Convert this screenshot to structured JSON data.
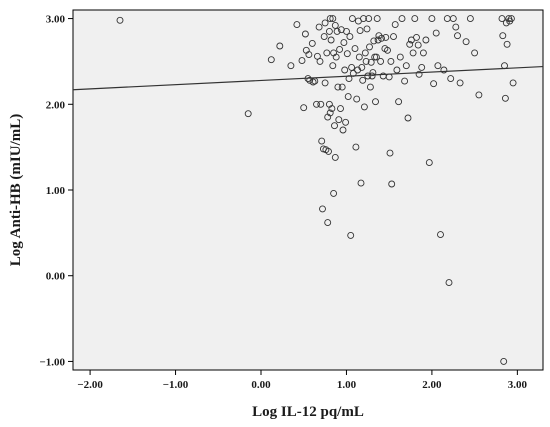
{
  "chart_data": {
    "type": "scatter",
    "title": "",
    "xlabel": "Log IL-12 pq/mL",
    "ylabel": "Log Anti-HB (mIU/mL)",
    "xlim": [
      -2.2,
      3.3
    ],
    "ylim": [
      -1.1,
      3.1
    ],
    "x_ticks": [
      -2.0,
      -1.0,
      0.0,
      1.0,
      2.0,
      3.0
    ],
    "x_tick_labels": [
      "−2.00",
      "−1.00",
      "0.00",
      "1.00",
      "2.00",
      "3.00"
    ],
    "y_ticks": [
      -1.0,
      0.0,
      1.0,
      2.0,
      3.0
    ],
    "y_tick_labels": [
      "−1.00",
      "0.00",
      "1.00",
      "2.00",
      "3.00"
    ],
    "grid": false,
    "legend": "none",
    "plot_background": "#f0f0f0",
    "marker_color": "#333333",
    "fit_line": {
      "x": [
        -2.2,
        3.3
      ],
      "y": [
        2.17,
        2.44
      ]
    },
    "points": [
      [
        -1.65,
        2.98
      ],
      [
        -0.15,
        1.89
      ],
      [
        0.12,
        2.52
      ],
      [
        0.22,
        2.68
      ],
      [
        0.35,
        2.45
      ],
      [
        0.42,
        2.93
      ],
      [
        0.48,
        2.51
      ],
      [
        0.5,
        1.96
      ],
      [
        0.52,
        2.82
      ],
      [
        0.53,
        2.63
      ],
      [
        0.55,
        2.3
      ],
      [
        0.56,
        2.58
      ],
      [
        0.57,
        2.28
      ],
      [
        0.6,
        2.71
      ],
      [
        0.61,
        2.26
      ],
      [
        0.63,
        2.27
      ],
      [
        0.65,
        2.0
      ],
      [
        0.66,
        2.56
      ],
      [
        0.68,
        2.9
      ],
      [
        0.69,
        2.5
      ],
      [
        0.7,
        2.0
      ],
      [
        0.71,
        1.57
      ],
      [
        0.72,
        0.78
      ],
      [
        0.73,
        1.48
      ],
      [
        0.74,
        2.79
      ],
      [
        0.75,
        2.95
      ],
      [
        0.75,
        2.25
      ],
      [
        0.76,
        1.47
      ],
      [
        0.77,
        2.6
      ],
      [
        0.78,
        1.85
      ],
      [
        0.78,
        0.62
      ],
      [
        0.79,
        1.45
      ],
      [
        0.8,
        2.85
      ],
      [
        0.8,
        2.0
      ],
      [
        0.81,
        3.0
      ],
      [
        0.81,
        1.9
      ],
      [
        0.82,
        2.75
      ],
      [
        0.83,
        1.95
      ],
      [
        0.84,
        3.0
      ],
      [
        0.84,
        2.45
      ],
      [
        0.85,
        2.6
      ],
      [
        0.85,
        0.96
      ],
      [
        0.86,
        1.75
      ],
      [
        0.87,
        2.92
      ],
      [
        0.87,
        1.38
      ],
      [
        0.88,
        2.55
      ],
      [
        0.89,
        2.85
      ],
      [
        0.9,
        2.2
      ],
      [
        0.91,
        1.82
      ],
      [
        0.92,
        2.64
      ],
      [
        0.93,
        1.95
      ],
      [
        0.94,
        2.87
      ],
      [
        0.95,
        2.2
      ],
      [
        0.96,
        1.7
      ],
      [
        0.97,
        2.72
      ],
      [
        0.98,
        2.4
      ],
      [
        0.99,
        1.79
      ],
      [
        1.0,
        2.85
      ],
      [
        1.01,
        2.59
      ],
      [
        1.02,
        2.09
      ],
      [
        1.03,
        2.3
      ],
      [
        1.04,
        2.79
      ],
      [
        1.05,
        0.47
      ],
      [
        1.06,
        2.43
      ],
      [
        1.07,
        3.0
      ],
      [
        1.08,
        2.36
      ],
      [
        1.1,
        2.65
      ],
      [
        1.11,
        1.5
      ],
      [
        1.12,
        2.06
      ],
      [
        1.13,
        2.4
      ],
      [
        1.14,
        2.97
      ],
      [
        1.15,
        2.55
      ],
      [
        1.16,
        2.86
      ],
      [
        1.17,
        1.08
      ],
      [
        1.18,
        2.43
      ],
      [
        1.19,
        2.28
      ],
      [
        1.2,
        3.0
      ],
      [
        1.21,
        1.97
      ],
      [
        1.22,
        2.6
      ],
      [
        1.23,
        2.5
      ],
      [
        1.24,
        2.88
      ],
      [
        1.25,
        2.33
      ],
      [
        1.26,
        3.0
      ],
      [
        1.27,
        2.67
      ],
      [
        1.28,
        2.2
      ],
      [
        1.29,
        2.49
      ],
      [
        1.3,
        2.33
      ],
      [
        1.31,
        2.37
      ],
      [
        1.32,
        2.74
      ],
      [
        1.33,
        2.55
      ],
      [
        1.34,
        2.03
      ],
      [
        1.35,
        2.55
      ],
      [
        1.36,
        3.0
      ],
      [
        1.37,
        2.75
      ],
      [
        1.38,
        2.8
      ],
      [
        1.4,
        2.5
      ],
      [
        1.41,
        2.77
      ],
      [
        1.43,
        2.33
      ],
      [
        1.45,
        2.65
      ],
      [
        1.46,
        2.78
      ],
      [
        1.48,
        2.63
      ],
      [
        1.5,
        2.32
      ],
      [
        1.51,
        1.43
      ],
      [
        1.52,
        2.5
      ],
      [
        1.53,
        1.07
      ],
      [
        1.55,
        2.79
      ],
      [
        1.57,
        2.93
      ],
      [
        1.59,
        2.4
      ],
      [
        1.61,
        2.03
      ],
      [
        1.63,
        2.55
      ],
      [
        1.65,
        3.0
      ],
      [
        1.68,
        2.27
      ],
      [
        1.7,
        2.45
      ],
      [
        1.72,
        1.84
      ],
      [
        1.74,
        2.7
      ],
      [
        1.76,
        2.75
      ],
      [
        1.78,
        2.6
      ],
      [
        1.8,
        3.0
      ],
      [
        1.82,
        2.78
      ],
      [
        1.84,
        2.69
      ],
      [
        1.85,
        2.35
      ],
      [
        1.88,
        2.43
      ],
      [
        1.9,
        2.6
      ],
      [
        1.93,
        2.75
      ],
      [
        1.97,
        1.32
      ],
      [
        2.0,
        3.0
      ],
      [
        2.02,
        2.24
      ],
      [
        2.05,
        2.83
      ],
      [
        2.07,
        2.45
      ],
      [
        2.1,
        0.48
      ],
      [
        2.14,
        2.4
      ],
      [
        2.18,
        3.0
      ],
      [
        2.2,
        -0.08
      ],
      [
        2.22,
        2.3
      ],
      [
        2.25,
        3.0
      ],
      [
        2.28,
        2.9
      ],
      [
        2.3,
        2.8
      ],
      [
        2.33,
        2.25
      ],
      [
        2.4,
        2.73
      ],
      [
        2.45,
        3.0
      ],
      [
        2.5,
        2.6
      ],
      [
        2.55,
        2.11
      ],
      [
        2.82,
        3.0
      ],
      [
        2.83,
        2.8
      ],
      [
        2.84,
        -1.0
      ],
      [
        2.85,
        2.45
      ],
      [
        2.86,
        2.07
      ],
      [
        2.87,
        2.95
      ],
      [
        2.88,
        2.7
      ],
      [
        2.9,
        3.0
      ],
      [
        2.91,
        2.97
      ],
      [
        2.93,
        3.0
      ],
      [
        2.95,
        2.25
      ]
    ]
  }
}
